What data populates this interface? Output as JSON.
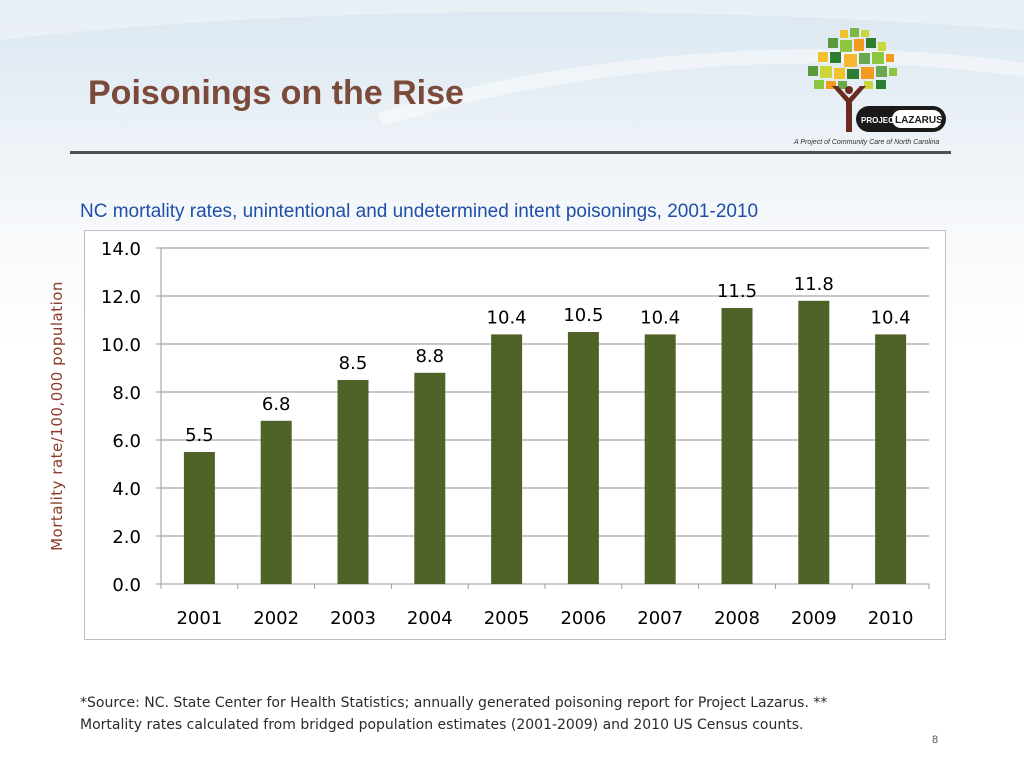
{
  "slide": {
    "title": "Poisonings on the Rise",
    "page_number": "8",
    "footnote_line1": "*Source: NC. State Center for Health Statistics; annually generated poisoning report for Project Lazarus. **",
    "footnote_line2": "Mortality rates calculated from bridged population estimates (2001-2009) and 2010 US Census counts."
  },
  "logo": {
    "text": "PROJECT LAZARUS",
    "tagline": "A Project of Community Care of North Carolina"
  },
  "chart_data": {
    "type": "bar",
    "title": "NC mortality rates, unintentional and undetermined intent poisonings, 2001-2010",
    "xlabel": "",
    "ylabel": "Mortality rate/100,000 population",
    "categories": [
      "2001",
      "2002",
      "2003",
      "2004",
      "2005",
      "2006",
      "2007",
      "2008",
      "2009",
      "2010"
    ],
    "values": [
      5.5,
      6.8,
      8.5,
      8.8,
      10.4,
      10.5,
      10.4,
      11.5,
      11.8,
      10.4
    ],
    "data_labels": [
      "5.5",
      "6.8",
      "8.5",
      "8.8",
      "10.4",
      "10.5",
      "10.4",
      "11.5",
      "11.8",
      "10.4"
    ],
    "ylim": [
      0,
      14
    ],
    "yticks": [
      "0.0",
      "2.0",
      "4.0",
      "6.0",
      "8.0",
      "10.0",
      "12.0",
      "14.0"
    ],
    "grid": true,
    "bar_color": "#4f6228"
  }
}
